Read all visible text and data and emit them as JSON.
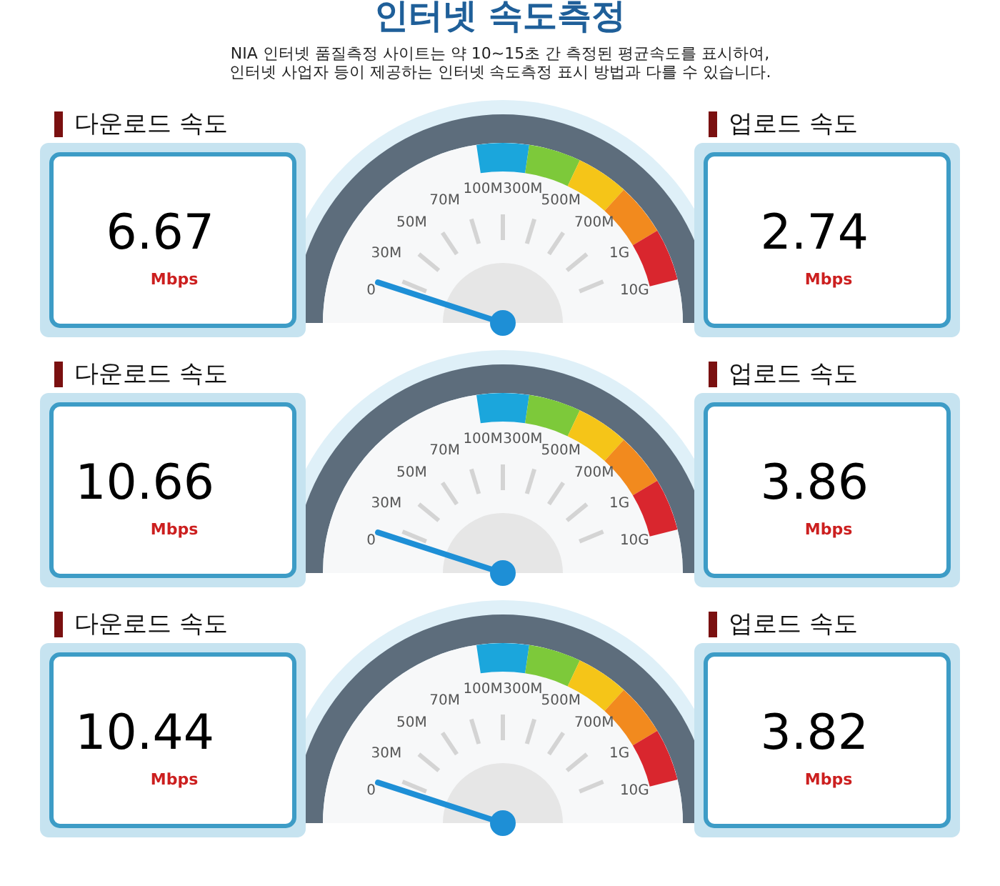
{
  "chart_data": [
    {
      "type": "other",
      "title": "인터넷 속도측정",
      "subtitle": "NIA 인터넷 품질측정 사이트는 약 10~15초 간 측정된 평균속도를 표시하여, 인터넷 사업자 등이 제공하는 인터넷 속도측정 표시 방법과 다를 수 있습니다.",
      "categories": [
        "다운로드 속도",
        "업로드 속도"
      ],
      "values": [
        6.67,
        2.74
      ],
      "data_labels": true,
      "ylabel": "Mbps",
      "annotations": [
        "0",
        "30M",
        "50M",
        "70M",
        "100M",
        "300M",
        "500M",
        "700M",
        "1G",
        "10G"
      ]
    },
    {
      "type": "other",
      "categories": [
        "다운로드 속도",
        "업로드 속도"
      ],
      "values": [
        10.66,
        3.86
      ],
      "data_labels": true,
      "ylabel": "Mbps",
      "annotations": [
        "0",
        "30M",
        "50M",
        "70M",
        "100M",
        "300M",
        "500M",
        "700M",
        "1G",
        "10G"
      ]
    },
    {
      "type": "other",
      "categories": [
        "다운로드 속도",
        "업로드 속도"
      ],
      "values": [
        10.44,
        3.82
      ],
      "data_labels": true,
      "ylabel": "Mbps",
      "annotations": [
        "0",
        "30M",
        "50M",
        "70M",
        "100M",
        "300M",
        "500M",
        "700M",
        "1G",
        "10G"
      ]
    }
  ]
}
